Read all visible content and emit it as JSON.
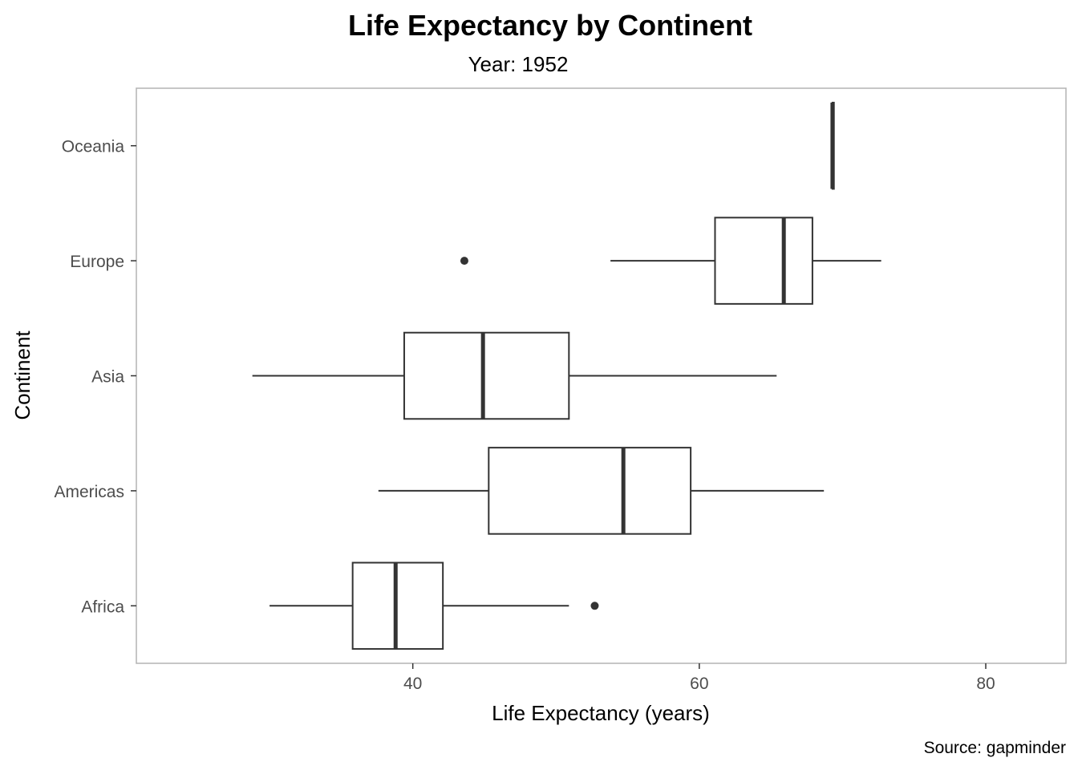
{
  "chart_data": {
    "type": "boxplot",
    "orientation": "horizontal",
    "title": "Life Expectancy by Continent",
    "subtitle": "Year: 1952",
    "xlabel": "Life Expectancy (years)",
    "ylabel": "Continent",
    "caption": "Source: gapminder",
    "xlim": [
      20.7,
      85.6
    ],
    "xticks": [
      40,
      60,
      80
    ],
    "grid": false,
    "categories": [
      "Africa",
      "Americas",
      "Asia",
      "Europe",
      "Oceania"
    ],
    "boxes": [
      {
        "category": "Africa",
        "whisker_low": 30.0,
        "q1": 35.8,
        "median": 38.8,
        "q3": 42.1,
        "whisker_high": 50.9,
        "outliers": [
          52.7
        ]
      },
      {
        "category": "Americas",
        "whisker_low": 37.6,
        "q1": 45.3,
        "median": 54.7,
        "q3": 59.4,
        "whisker_high": 68.7,
        "outliers": []
      },
      {
        "category": "Asia",
        "whisker_low": 28.8,
        "q1": 39.4,
        "median": 44.9,
        "q3": 50.9,
        "whisker_high": 65.4,
        "outliers": []
      },
      {
        "category": "Europe",
        "whisker_low": 53.8,
        "q1": 61.1,
        "median": 65.9,
        "q3": 67.9,
        "whisker_high": 72.7,
        "outliers": [
          43.6
        ]
      },
      {
        "category": "Oceania",
        "whisker_low": 69.3,
        "q1": 69.3,
        "median": 69.3,
        "q3": 69.4,
        "whisker_high": 69.4,
        "outliers": []
      }
    ],
    "colors": {
      "box": "#333333",
      "panel_border": "#b3b3b3",
      "tick_label": "#4d4d4d"
    }
  }
}
